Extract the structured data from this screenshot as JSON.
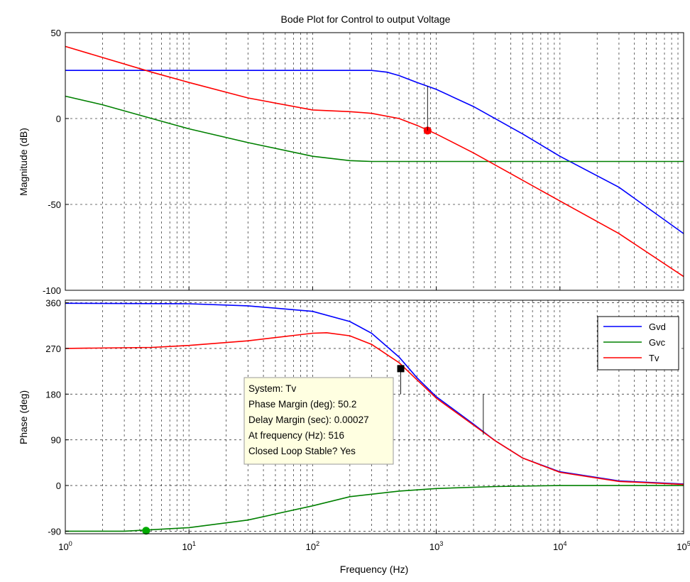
{
  "chart_data": {
    "type": "line",
    "title": "Bode Plot for Control to output Voltage",
    "xlabel": "Frequency  (Hz)",
    "xscale": "log",
    "xlim": [
      1,
      100000
    ],
    "xticks": [
      {
        "base": "10",
        "exp": "0"
      },
      {
        "base": "10",
        "exp": "1"
      },
      {
        "base": "10",
        "exp": "2"
      },
      {
        "base": "10",
        "exp": "3"
      },
      {
        "base": "10",
        "exp": "4"
      },
      {
        "base": "10",
        "exp": "5"
      }
    ],
    "grid": true,
    "colors": {
      "Gvd": "#0000ff",
      "Gvc": "#008000",
      "Tv": "#ff0000"
    },
    "magnitude": {
      "ylabel": "Magnitude (dB)",
      "ylim": [
        -100,
        50
      ],
      "yticks": [
        "50",
        "0",
        "-50",
        "-100"
      ],
      "series": [
        {
          "name": "Gvd",
          "x": [
            1,
            200,
            300,
            400,
            500,
            700,
            1000,
            2000,
            5000,
            10000,
            30000,
            100000
          ],
          "y": [
            28,
            28,
            28,
            27,
            25,
            21,
            17,
            7,
            -9,
            -22,
            -40,
            -67
          ]
        },
        {
          "name": "Gvc",
          "x": [
            1,
            2,
            5,
            10,
            30,
            100,
            200,
            300,
            1000,
            10000,
            100000
          ],
          "y": [
            13,
            8,
            0,
            -6,
            -14,
            -22,
            -24.5,
            -25,
            -25,
            -25,
            -25
          ]
        },
        {
          "name": "Tv",
          "x": [
            1,
            5,
            10,
            30,
            100,
            200,
            300,
            500,
            700,
            1000,
            2000,
            5000,
            10000,
            30000,
            100000
          ],
          "y": [
            42,
            27,
            21,
            12,
            5,
            4,
            3,
            0,
            -4,
            -9,
            -20,
            -36,
            -48,
            -67,
            -92
          ]
        }
      ],
      "markers": [
        {
          "series": "Tv",
          "x": 850,
          "y": -7,
          "color": "#ff0000"
        }
      ]
    },
    "phase": {
      "ylabel": "Phase (deg)",
      "ylim": [
        -95,
        365
      ],
      "yticks": [
        "360",
        "270",
        "180",
        "90",
        "0",
        "-90"
      ],
      "series": [
        {
          "name": "Gvd",
          "x": [
            1,
            10,
            30,
            100,
            200,
            300,
            500,
            700,
            1000,
            2000,
            3000,
            5000,
            10000,
            30000,
            100000
          ],
          "y": [
            359,
            358,
            354,
            343,
            323,
            300,
            253,
            212,
            175,
            121,
            88,
            54,
            27,
            9,
            3
          ]
        },
        {
          "name": "Gvc",
          "x": [
            1,
            3,
            5,
            10,
            30,
            100,
            200,
            500,
            1000,
            3000,
            10000,
            100000
          ],
          "y": [
            -90,
            -90,
            -87,
            -83,
            -68,
            -40,
            -22,
            -11,
            -6,
            -2,
            0,
            0
          ]
        },
        {
          "name": "Tv",
          "x": [
            1,
            5,
            10,
            30,
            100,
            130,
            200,
            300,
            500,
            700,
            1000,
            2000,
            3000,
            5000,
            10000,
            30000,
            100000
          ],
          "y": [
            270,
            272,
            276,
            285,
            300,
            301,
            295,
            278,
            242,
            208,
            172,
            119,
            88,
            54,
            26,
            8,
            2
          ]
        }
      ],
      "markers": [
        {
          "series": "Tv",
          "x": 516,
          "y": 230.2,
          "color": "#000000",
          "shape": "square"
        },
        {
          "series": "Gvc",
          "x": 4.5,
          "y": -89,
          "color": "#00aa00",
          "shape": "circle"
        }
      ],
      "legend": {
        "position": "top-right",
        "entries": [
          "Gvd",
          "Gvc",
          "Tv"
        ]
      }
    },
    "annotation": {
      "lines": [
        "System: Tv",
        "Phase Margin (deg): 50.2",
        "Delay Margin (sec): 0.00027",
        "At frequency (Hz): 516",
        "Closed Loop Stable? Yes"
      ]
    }
  }
}
